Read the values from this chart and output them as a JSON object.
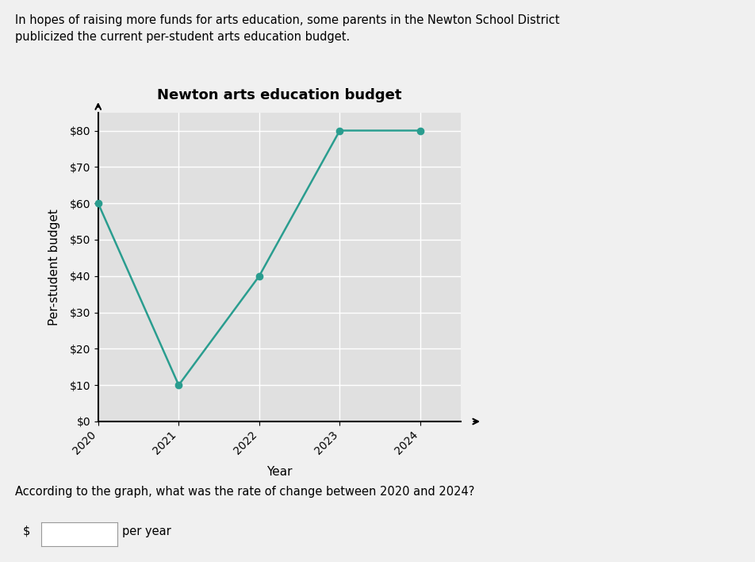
{
  "title": "Newton arts education budget",
  "xlabel": "Year",
  "ylabel": "Per-student budget",
  "years": [
    2020,
    2021,
    2022,
    2023,
    2024
  ],
  "values": [
    60,
    10,
    40,
    80,
    80
  ],
  "line_color": "#2a9d8f",
  "marker_color": "#2a9d8f",
  "ylim": [
    0,
    85
  ],
  "yticks": [
    0,
    10,
    20,
    30,
    40,
    50,
    60,
    70,
    80
  ],
  "ytick_labels": [
    "$0",
    "$10",
    "$20",
    "$30",
    "$40",
    "$50",
    "$60",
    "$70",
    "$80"
  ],
  "bg_color": "#f0f0f0",
  "plot_bg_color": "#e0e0e0",
  "grid_color": "#ffffff",
  "header_text": "In hopes of raising more funds for arts education, some parents in the Newton School District\npublicized the current per-student arts education budget.",
  "question_text": "According to the graph, what was the rate of change between 2020 and 2024?",
  "answer_prefix": "$",
  "answer_suffix": "per year",
  "title_fontsize": 13,
  "axis_label_fontsize": 11,
  "tick_fontsize": 10,
  "header_fontsize": 10.5,
  "question_fontsize": 10.5
}
